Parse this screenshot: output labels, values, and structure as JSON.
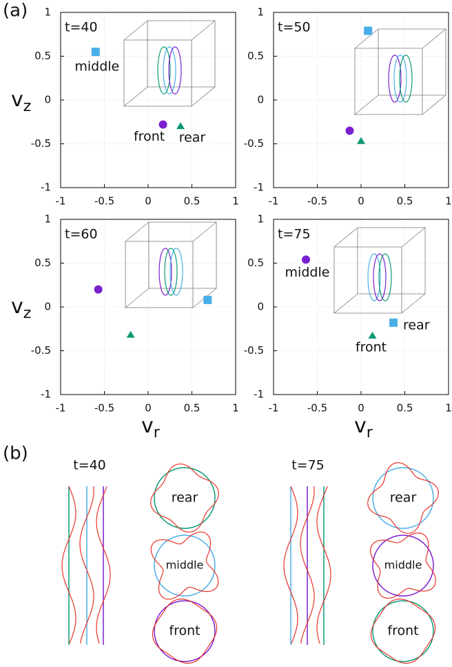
{
  "panel_labels": [
    "(a)",
    "(b)"
  ],
  "chart_data": [
    {
      "type": "scatter",
      "label": "t=40",
      "ylabel": "v",
      "ylabel_sub": "z",
      "xlim": [
        -1,
        1
      ],
      "ylim": [
        -1,
        1
      ],
      "xticks": [
        -1,
        -0.5,
        0,
        0.5,
        1
      ],
      "yticks": [
        -1,
        -0.5,
        0,
        0.5,
        1
      ],
      "grid": true,
      "series": [
        {
          "marker": "circle",
          "color": "#7a1fd0",
          "label": "front",
          "x": [
            0.17
          ],
          "values": [
            -0.28
          ]
        },
        {
          "marker": "square",
          "color": "#4aaee6",
          "label": "middle",
          "x": [
            -0.6
          ],
          "values": [
            0.55
          ]
        },
        {
          "marker": "triangle",
          "color": "#0a9a73",
          "label": "rear",
          "x": [
            0.37
          ],
          "values": [
            -0.3
          ]
        }
      ]
    },
    {
      "type": "scatter",
      "label": "t=50",
      "xlim": [
        -1,
        1
      ],
      "ylim": [
        -1,
        1
      ],
      "xticks": [
        -1,
        -0.5,
        0,
        0.5,
        1
      ],
      "yticks": [
        -1,
        -0.5,
        0,
        0.5,
        1
      ],
      "grid": true,
      "series": [
        {
          "marker": "circle",
          "color": "#7a1fd0",
          "x": [
            -0.13
          ],
          "values": [
            -0.35
          ]
        },
        {
          "marker": "square",
          "color": "#4aaee6",
          "x": [
            0.08
          ],
          "values": [
            0.79
          ]
        },
        {
          "marker": "triangle",
          "color": "#0a9a73",
          "x": [
            0.0
          ],
          "values": [
            -0.47
          ]
        }
      ]
    },
    {
      "type": "scatter",
      "label": "t=60",
      "ylabel": "v",
      "ylabel_sub": "z",
      "xlabel": "v",
      "xlabel_sub": "r",
      "xlim": [
        -1,
        1
      ],
      "ylim": [
        -1,
        1
      ],
      "xticks": [
        -1,
        -0.5,
        0,
        0.5,
        1
      ],
      "yticks": [
        -1,
        -0.5,
        0,
        0.5,
        1
      ],
      "grid": true,
      "series": [
        {
          "marker": "circle",
          "color": "#7a1fd0",
          "x": [
            -0.57
          ],
          "values": [
            0.2
          ]
        },
        {
          "marker": "square",
          "color": "#4aaee6",
          "x": [
            0.68
          ],
          "values": [
            0.08
          ]
        },
        {
          "marker": "triangle",
          "color": "#0a9a73",
          "x": [
            -0.2
          ],
          "values": [
            -0.32
          ]
        }
      ]
    },
    {
      "type": "scatter",
      "label": "t=75",
      "xlabel": "v",
      "xlabel_sub": "r",
      "xlim": [
        -1,
        1
      ],
      "ylim": [
        -1,
        1
      ],
      "xticks": [
        -1,
        -0.5,
        0,
        0.5,
        1
      ],
      "yticks": [
        -1,
        -0.5,
        0,
        0.5,
        1
      ],
      "grid": true,
      "series": [
        {
          "marker": "circle",
          "color": "#7a1fd0",
          "label": "middle",
          "x": [
            -0.63
          ],
          "values": [
            0.54
          ]
        },
        {
          "marker": "square",
          "color": "#4aaee6",
          "label": "rear",
          "x": [
            0.37
          ],
          "values": [
            -0.18
          ]
        },
        {
          "marker": "triangle",
          "color": "#0a9a73",
          "label": "front",
          "x": [
            0.13
          ],
          "values": [
            -0.33
          ]
        }
      ]
    }
  ],
  "panel_b": {
    "times": [
      "t=40",
      "t=75"
    ],
    "labels": [
      [
        "rear",
        "middle",
        "front"
      ],
      [
        "rear",
        "middle",
        "front"
      ]
    ]
  }
}
